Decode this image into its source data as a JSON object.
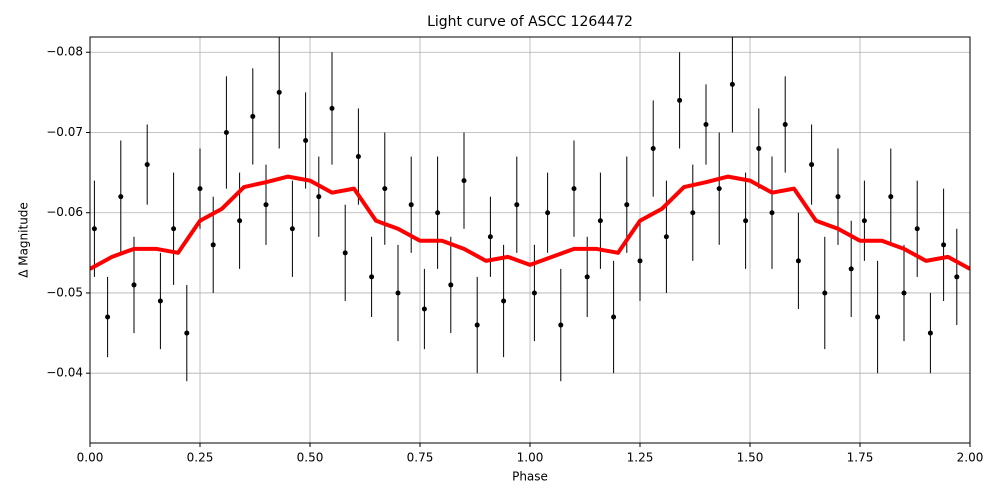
{
  "chart_data": {
    "type": "scatter",
    "title": "Light curve of ASCC 1264472",
    "x_label": "Phase",
    "y_label": "Δ Magnitude",
    "xlim": [
      0,
      2
    ],
    "ylim": [
      -0.0313,
      -0.0819
    ],
    "xticks": [
      {
        "value": 0,
        "label": "0.00"
      },
      {
        "value": 0.25,
        "label": "0.25"
      },
      {
        "value": 0.5,
        "label": "0.50"
      },
      {
        "value": 0.75,
        "label": "0.75"
      },
      {
        "value": 1,
        "label": "1.00"
      },
      {
        "value": 1.25,
        "label": "1.25"
      },
      {
        "value": 1.5,
        "label": "1.50"
      },
      {
        "value": 1.75,
        "label": "1.75"
      },
      {
        "value": 2,
        "label": "2.00"
      }
    ],
    "yticks": [
      {
        "value": -0.04,
        "label": "−0.04"
      },
      {
        "value": -0.05,
        "label": "−0.05"
      },
      {
        "value": -0.06,
        "label": "−0.06"
      },
      {
        "value": -0.07,
        "label": "−0.07"
      },
      {
        "value": -0.08,
        "label": "−0.08"
      }
    ],
    "grid": true,
    "points": {
      "color": "#000000",
      "x": [
        0.01,
        0.04,
        0.07,
        0.1,
        0.13,
        0.16,
        0.19,
        0.22,
        0.25,
        0.28,
        0.31,
        0.34,
        0.37,
        0.4,
        0.43,
        0.46,
        0.49,
        0.52,
        0.55,
        0.58,
        0.61,
        0.64,
        0.67,
        0.7,
        0.73,
        0.76,
        0.79,
        0.82,
        0.85,
        0.88,
        0.91,
        0.94,
        0.97,
        1.01,
        1.04,
        1.07,
        1.1,
        1.13,
        1.16,
        1.19,
        1.22,
        1.25,
        1.28,
        1.31,
        1.34,
        1.37,
        1.4,
        1.43,
        1.46,
        1.49,
        1.52,
        1.55,
        1.58,
        1.61,
        1.64,
        1.67,
        1.7,
        1.73,
        1.76,
        1.79,
        1.82,
        1.85,
        1.88,
        1.91,
        1.94,
        1.97
      ],
      "values": [
        -0.058,
        -0.047,
        -0.062,
        -0.051,
        -0.066,
        -0.049,
        -0.058,
        -0.045,
        -0.063,
        -0.056,
        -0.07,
        -0.059,
        -0.072,
        -0.061,
        -0.075,
        -0.058,
        -0.069,
        -0.062,
        -0.073,
        -0.055,
        -0.067,
        -0.052,
        -0.063,
        -0.05,
        -0.061,
        -0.048,
        -0.06,
        -0.051,
        -0.064,
        -0.046,
        -0.057,
        -0.049,
        -0.061,
        -0.05,
        -0.06,
        -0.046,
        -0.063,
        -0.052,
        -0.059,
        -0.047,
        -0.061,
        -0.054,
        -0.068,
        -0.057,
        -0.074,
        -0.06,
        -0.071,
        -0.063,
        -0.076,
        -0.059,
        -0.068,
        -0.06,
        -0.071,
        -0.054,
        -0.066,
        -0.05,
        -0.062,
        -0.053,
        -0.059,
        -0.047,
        -0.062,
        -0.05,
        -0.058,
        -0.045,
        -0.056,
        -0.052
      ],
      "errors": [
        0.006,
        0.005,
        0.007,
        0.006,
        0.005,
        0.006,
        0.007,
        0.006,
        0.005,
        0.006,
        0.007,
        0.006,
        0.006,
        0.005,
        0.007,
        0.006,
        0.006,
        0.005,
        0.007,
        0.006,
        0.006,
        0.005,
        0.007,
        0.006,
        0.006,
        0.005,
        0.007,
        0.006,
        0.006,
        0.006,
        0.005,
        0.007,
        0.006,
        0.006,
        0.005,
        0.007,
        0.006,
        0.005,
        0.006,
        0.007,
        0.006,
        0.005,
        0.006,
        0.007,
        0.006,
        0.006,
        0.005,
        0.007,
        0.006,
        0.006,
        0.005,
        0.007,
        0.006,
        0.006,
        0.005,
        0.007,
        0.006,
        0.006,
        0.005,
        0.007,
        0.006,
        0.006,
        0.006,
        0.005,
        0.007,
        0.006
      ]
    },
    "trend": {
      "color": "#ff0000",
      "x": [
        0,
        0.05,
        0.1,
        0.15,
        0.2,
        0.25,
        0.3,
        0.35,
        0.4,
        0.45,
        0.5,
        0.55,
        0.6,
        0.65,
        0.7,
        0.75,
        0.8,
        0.85,
        0.9,
        0.95,
        1,
        1.05,
        1.1,
        1.15,
        1.2,
        1.25,
        1.3,
        1.35,
        1.4,
        1.45,
        1.5,
        1.55,
        1.6,
        1.65,
        1.7,
        1.75,
        1.8,
        1.85,
        1.9,
        1.95,
        2
      ],
      "values": [
        -0.053,
        -0.0545,
        -0.0555,
        -0.0555,
        -0.055,
        -0.059,
        -0.0605,
        -0.0632,
        -0.0638,
        -0.0645,
        -0.064,
        -0.0625,
        -0.063,
        -0.059,
        -0.058,
        -0.0565,
        -0.0565,
        -0.0555,
        -0.054,
        -0.0545,
        -0.0535,
        -0.0545,
        -0.0555,
        -0.0555,
        -0.055,
        -0.059,
        -0.0605,
        -0.0632,
        -0.0638,
        -0.0645,
        -0.064,
        -0.0625,
        -0.063,
        -0.059,
        -0.058,
        -0.0565,
        -0.0565,
        -0.0555,
        -0.054,
        -0.0545,
        -0.053
      ]
    }
  }
}
